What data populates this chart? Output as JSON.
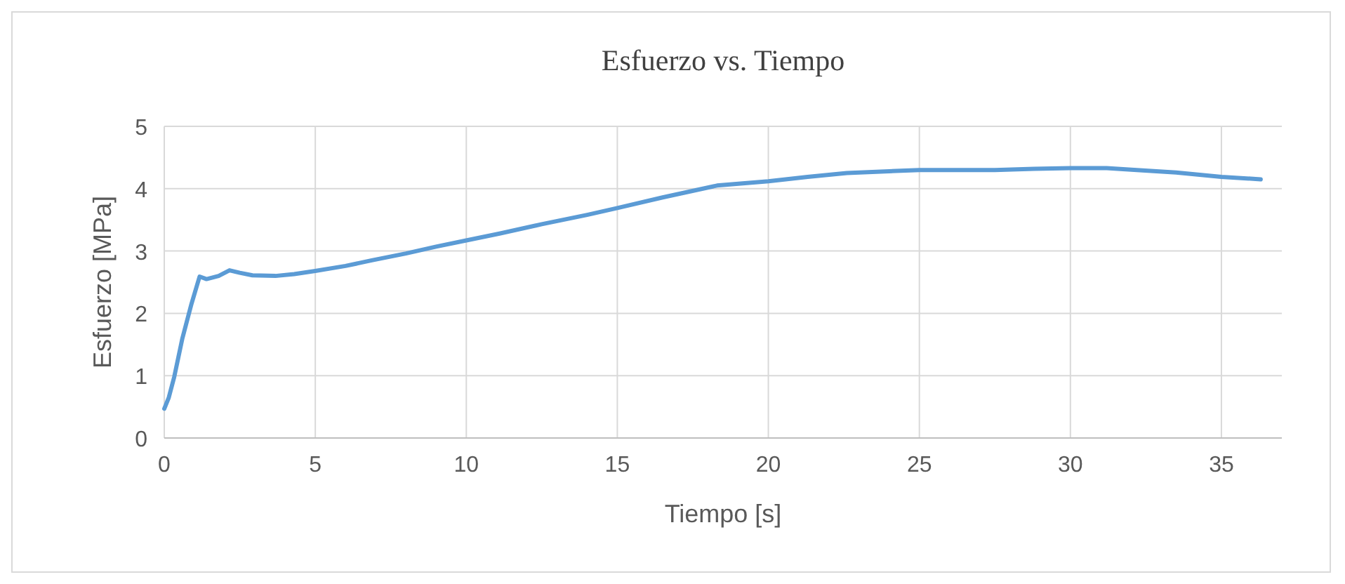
{
  "chart_data": {
    "type": "line",
    "title": "Esfuerzo vs. Tiempo",
    "xlabel": "Tiempo [s]",
    "ylabel": "Esfuerzo [MPa]",
    "xlim": [
      0,
      37
    ],
    "xticks": [
      0,
      5,
      10,
      15,
      20,
      25,
      30,
      35
    ],
    "ylim": [
      0,
      5
    ],
    "yticks": [
      0,
      1,
      2,
      3,
      4,
      5
    ],
    "grid": true,
    "marker": "none",
    "line_style": "solid",
    "series": [
      {
        "color": "#5b9bd5",
        "x": [
          0,
          0.15,
          0.33,
          0.6,
          0.9,
          1.17,
          1.4,
          1.8,
          2.16,
          2.5,
          2.92,
          3.68,
          4.3,
          5,
          6,
          6.87,
          8,
          9,
          10,
          11.1,
          12.5,
          14,
          15,
          16.5,
          18.3,
          20,
          21.3,
          22.6,
          24,
          25,
          26.3,
          27.5,
          28.8,
          30,
          31.2,
          32.2,
          33.5,
          35,
          36.3
        ],
        "values": [
          0.47,
          0.65,
          0.98,
          1.6,
          2.15,
          2.59,
          2.55,
          2.6,
          2.69,
          2.65,
          2.61,
          2.6,
          2.63,
          2.68,
          2.76,
          2.85,
          2.96,
          3.07,
          3.17,
          3.28,
          3.43,
          3.58,
          3.69,
          3.86,
          4.05,
          4.12,
          4.19,
          4.25,
          4.28,
          4.3,
          4.3,
          4.3,
          4.32,
          4.33,
          4.33,
          4.3,
          4.26,
          4.19,
          4.15
        ]
      }
    ]
  }
}
